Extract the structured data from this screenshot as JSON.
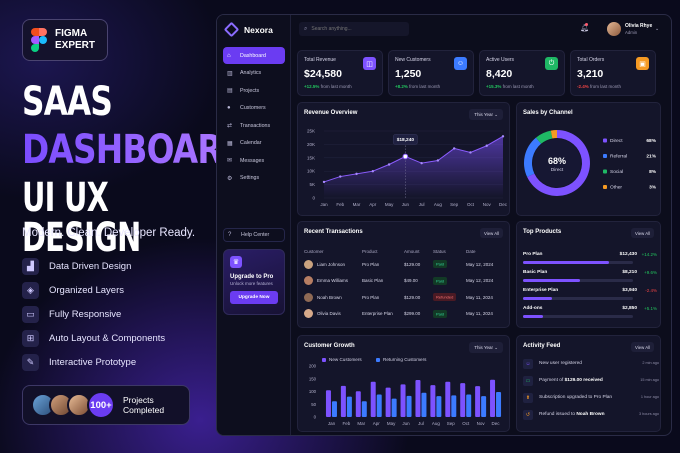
{
  "promo": {
    "badge": [
      "FIGMA",
      "EXPERT"
    ],
    "headline": [
      "SAAS",
      "DASHBOARD",
      "UI UX DESIGN"
    ],
    "tagline": "Modern. Clean. Developer Ready.",
    "features": [
      {
        "icon": "chart-icon",
        "glyph": "▟",
        "label": "Data Driven Design"
      },
      {
        "icon": "layers-icon",
        "glyph": "◈",
        "label": "Organized Layers"
      },
      {
        "icon": "responsive-icon",
        "glyph": "▭",
        "label": "Fully Responsive"
      },
      {
        "icon": "components-icon",
        "glyph": "⊞",
        "label": "Auto Layout & Components"
      },
      {
        "icon": "pen-icon",
        "glyph": "✎",
        "label": "Interactive Prototype"
      }
    ],
    "proof": {
      "count": "100+",
      "text": [
        "Projects",
        "Completed"
      ]
    }
  },
  "app": {
    "brand": "Nexora",
    "nav": [
      {
        "label": "Dashboard",
        "icon": "home-icon",
        "glyph": "⌂",
        "active": true
      },
      {
        "label": "Analytics",
        "icon": "analytics-icon",
        "glyph": "▥"
      },
      {
        "label": "Projects",
        "icon": "folder-icon",
        "glyph": "▤"
      },
      {
        "label": "Customers",
        "icon": "users-icon",
        "glyph": "●"
      },
      {
        "label": "Transactions",
        "icon": "transactions-icon",
        "glyph": "⇄"
      },
      {
        "label": "Calendar",
        "icon": "calendar-icon",
        "glyph": "▦"
      },
      {
        "label": "Messages",
        "icon": "message-icon",
        "glyph": "✉"
      },
      {
        "label": "Settings",
        "icon": "gear-icon",
        "glyph": "⚙"
      }
    ],
    "help": "Help Center",
    "upgrade": {
      "title": "Upgrade to Pro",
      "subtitle": "Unlock more features",
      "button": "Upgrade Now"
    },
    "search_placeholder": "Search anything...",
    "user": {
      "name": "Olivia Rhye",
      "role": "Admin"
    }
  },
  "kpis": [
    {
      "label": "Total Revenue",
      "value": "$24,580",
      "delta": "+12.5%",
      "note": "from last month",
      "color": "#7d52ff",
      "icon": "bag-icon",
      "glyph": "◫",
      "up": true
    },
    {
      "label": "New Customers",
      "value": "1,250",
      "delta": "+8.2%",
      "note": "from last month",
      "color": "#3c7bff",
      "icon": "user-icon",
      "glyph": "☺",
      "up": true
    },
    {
      "label": "Active Users",
      "value": "8,420",
      "delta": "+15.3%",
      "note": "from last month",
      "color": "#1fb865",
      "icon": "power-icon",
      "glyph": "⏻",
      "up": true
    },
    {
      "label": "Total Orders",
      "value": "3,210",
      "delta": "-2.4%",
      "note": "from last month",
      "color": "#f59a23",
      "icon": "cart-icon",
      "glyph": "▣",
      "up": false
    }
  ],
  "revenue": {
    "title": "Revenue Overview",
    "period": "This Year",
    "tooltip": "$18,240",
    "chart_data": {
      "type": "area",
      "categories": [
        "Jan",
        "Feb",
        "Mar",
        "Apr",
        "May",
        "Jun",
        "Jul",
        "Aug",
        "Sep",
        "Oct",
        "Nov",
        "Dec"
      ],
      "values": [
        6,
        8,
        9,
        10,
        12.5,
        15.5,
        13,
        14,
        18.5,
        17,
        19.5,
        23
      ],
      "ylim": [
        0,
        25
      ],
      "yticks": [
        "0",
        "5K",
        "10K",
        "15K",
        "20K",
        "25K"
      ]
    }
  },
  "sales": {
    "title": "Sales by Channel",
    "center_value": "68%",
    "center_label": "Direct",
    "chart_data": {
      "type": "pie",
      "labels": [
        "Direct",
        "Referral",
        "Social",
        "Other"
      ],
      "values": [
        68,
        21,
        8,
        3
      ],
      "display": [
        "68%",
        "21%",
        "8%",
        "3%"
      ],
      "colors": [
        "#7d52ff",
        "#3c7bff",
        "#1fb865",
        "#f59a23"
      ]
    }
  },
  "transactions": {
    "title": "Recent Transactions",
    "view_all": "View All",
    "columns": [
      "Customer",
      "Product",
      "Amount",
      "Status",
      "Date"
    ],
    "rows": [
      {
        "name": "Liam Johnson",
        "product": "Pro Plan",
        "amount": "$129.00",
        "status": "Paid",
        "date": "May 12, 2024",
        "av": "#c9a27f"
      },
      {
        "name": "Emma Williams",
        "product": "Basic Plan",
        "amount": "$49.00",
        "status": "Paid",
        "date": "May 12, 2024",
        "av": "#b77e63"
      },
      {
        "name": "Noah Brown",
        "product": "Pro Plan",
        "amount": "$129.00",
        "status": "Refunded",
        "date": "May 11, 2024",
        "av": "#8f6a55"
      },
      {
        "name": "Olivia Davis",
        "product": "Enterprise Plan",
        "amount": "$299.00",
        "status": "Paid",
        "date": "May 11, 2024",
        "av": "#d6a98a"
      }
    ]
  },
  "products": {
    "title": "Top Products",
    "view_all": "View All",
    "items": [
      {
        "name": "Pro Plan",
        "value": "$12,430",
        "pct": "+14.2%",
        "share": 0.78,
        "up": true
      },
      {
        "name": "Basic Plan",
        "value": "$8,210",
        "pct": "+9.6%",
        "share": 0.52,
        "up": true
      },
      {
        "name": "Enterprise Plan",
        "value": "$3,940",
        "pct": "-2.4%",
        "share": 0.26,
        "up": false
      },
      {
        "name": "Add-ons",
        "value": "$2,850",
        "pct": "+5.1%",
        "share": 0.18,
        "up": true
      }
    ]
  },
  "growth": {
    "title": "Customer Growth",
    "period": "This Year",
    "chart_data": {
      "type": "bar",
      "categories": [
        "Jan",
        "Feb",
        "Mar",
        "Apr",
        "May",
        "Jun",
        "Jul",
        "Aug",
        "Sep",
        "Oct",
        "Nov",
        "Dec"
      ],
      "series": [
        {
          "name": "New Customers",
          "color": "#7d52ff",
          "values": [
            105,
            122,
            101,
            138,
            115,
            128,
            145,
            125,
            138,
            133,
            121,
            146
          ]
        },
        {
          "name": "Returning Customers",
          "color": "#3c7bff",
          "values": [
            62,
            80,
            62,
            88,
            72,
            83,
            95,
            82,
            85,
            88,
            82,
            98
          ]
        }
      ],
      "ylim": [
        0,
        200
      ],
      "yticks": [
        "0",
        "50",
        "100",
        "150",
        "200"
      ]
    }
  },
  "activity": {
    "title": "Activity Feed",
    "view_all": "View All",
    "items": [
      {
        "icon": "user-add-icon",
        "glyph": "☺",
        "text": "New user registered",
        "bold": "",
        "time": "2 min ago",
        "color": "#7d52ff"
      },
      {
        "icon": "payment-icon",
        "glyph": "▭",
        "text": "Payment of ",
        "bold": "$129.00 received",
        "time": "15 min ago",
        "color": "#1fb865"
      },
      {
        "icon": "upgrade-icon",
        "glyph": "⬆",
        "text": "Subscription upgraded to Pro Plan",
        "bold": "",
        "time": "1 hour ago",
        "color": "#f59a23"
      },
      {
        "icon": "refund-icon",
        "glyph": "↺",
        "text": "Refund issued to ",
        "bold": "Noah Brown",
        "time": "3 hours ago",
        "color": "#f59a23"
      }
    ]
  }
}
